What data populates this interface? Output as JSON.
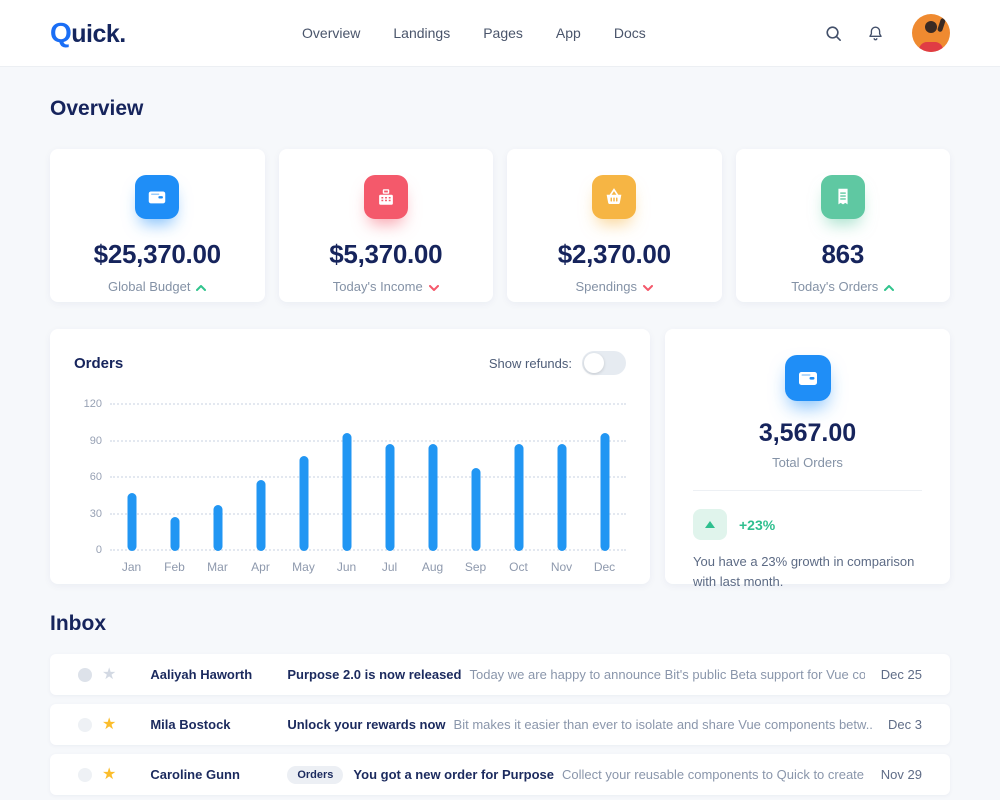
{
  "nav": {
    "logo_q": "Q",
    "logo_rest": "uick.",
    "items": [
      "Overview",
      "Landings",
      "Pages",
      "App",
      "Docs"
    ],
    "right_icons": [
      "search-icon",
      "bell-icon",
      "avatar"
    ]
  },
  "page_title": "Overview",
  "stat_cards": [
    {
      "icon": "wallet-icon",
      "color": "#1f8ef7",
      "amount": "$25,370.00",
      "label": "Global Budget",
      "trend": "up"
    },
    {
      "icon": "cash-register-icon",
      "color": "#f4596b",
      "amount": "$5,370.00",
      "label": "Today's Income",
      "trend": "down"
    },
    {
      "icon": "basket-icon",
      "color": "#f6b544",
      "amount": "$2,370.00",
      "label": "Spendings",
      "trend": "down"
    },
    {
      "icon": "receipt-icon",
      "color": "#5fc8a2",
      "amount": "863",
      "label": "Today's Orders",
      "trend": "up"
    }
  ],
  "orders_card": {
    "title": "Orders",
    "toggle_label": "Show refunds:",
    "toggle_state": "off"
  },
  "chart_data": {
    "type": "bar",
    "title": "Orders",
    "categories": [
      "Jan",
      "Feb",
      "Mar",
      "Apr",
      "May",
      "Jun",
      "Jul",
      "Aug",
      "Sep",
      "Oct",
      "Nov",
      "Dec"
    ],
    "values": [
      48,
      28,
      38,
      58,
      78,
      97,
      88,
      88,
      68,
      88,
      88,
      97
    ],
    "ylabel": "",
    "xlabel": "",
    "ylim": [
      0,
      120
    ],
    "yticks": [
      0,
      30,
      60,
      90,
      120
    ],
    "bar_color": "#2196f3",
    "grid": "horizontal-dotted",
    "legend": "none"
  },
  "total_orders_card": {
    "icon": "wallet-icon",
    "amount": "3,567.00",
    "label": "Total Orders",
    "growth_pct": "+23%",
    "description": "You have a 23% growth in comparison with last month."
  },
  "inbox": {
    "title": "Inbox",
    "messages": [
      {
        "sender": "Aaliyah Haworth",
        "badge": "",
        "subject": "Purpose 2.0 is now released",
        "preview": "Today we are happy to announce Bit's public Beta support for Vue co...",
        "date": "Dec 25",
        "starred": false
      },
      {
        "sender": "Mila Bostock",
        "badge": "",
        "subject": "Unlock your rewards now",
        "preview": "Bit makes it easier than ever to isolate and share Vue components betw...",
        "date": "Dec 3",
        "starred": true
      },
      {
        "sender": "Caroline Gunn",
        "badge": "Orders",
        "subject": "You got a new order for Purpose",
        "preview": "Collect your reusable components to Quick to create your very o...",
        "date": "Nov 29",
        "starred": true
      }
    ]
  },
  "colors": {
    "navy_text": "#16245c",
    "gray_text": "#8492a6",
    "accent_blue": "#1f8ef7",
    "bar_blue": "#2196f3",
    "green": "#2fbf8f",
    "red": "#f4596b",
    "yellow": "#f6b544",
    "page_bg": "#f6f8fb"
  }
}
